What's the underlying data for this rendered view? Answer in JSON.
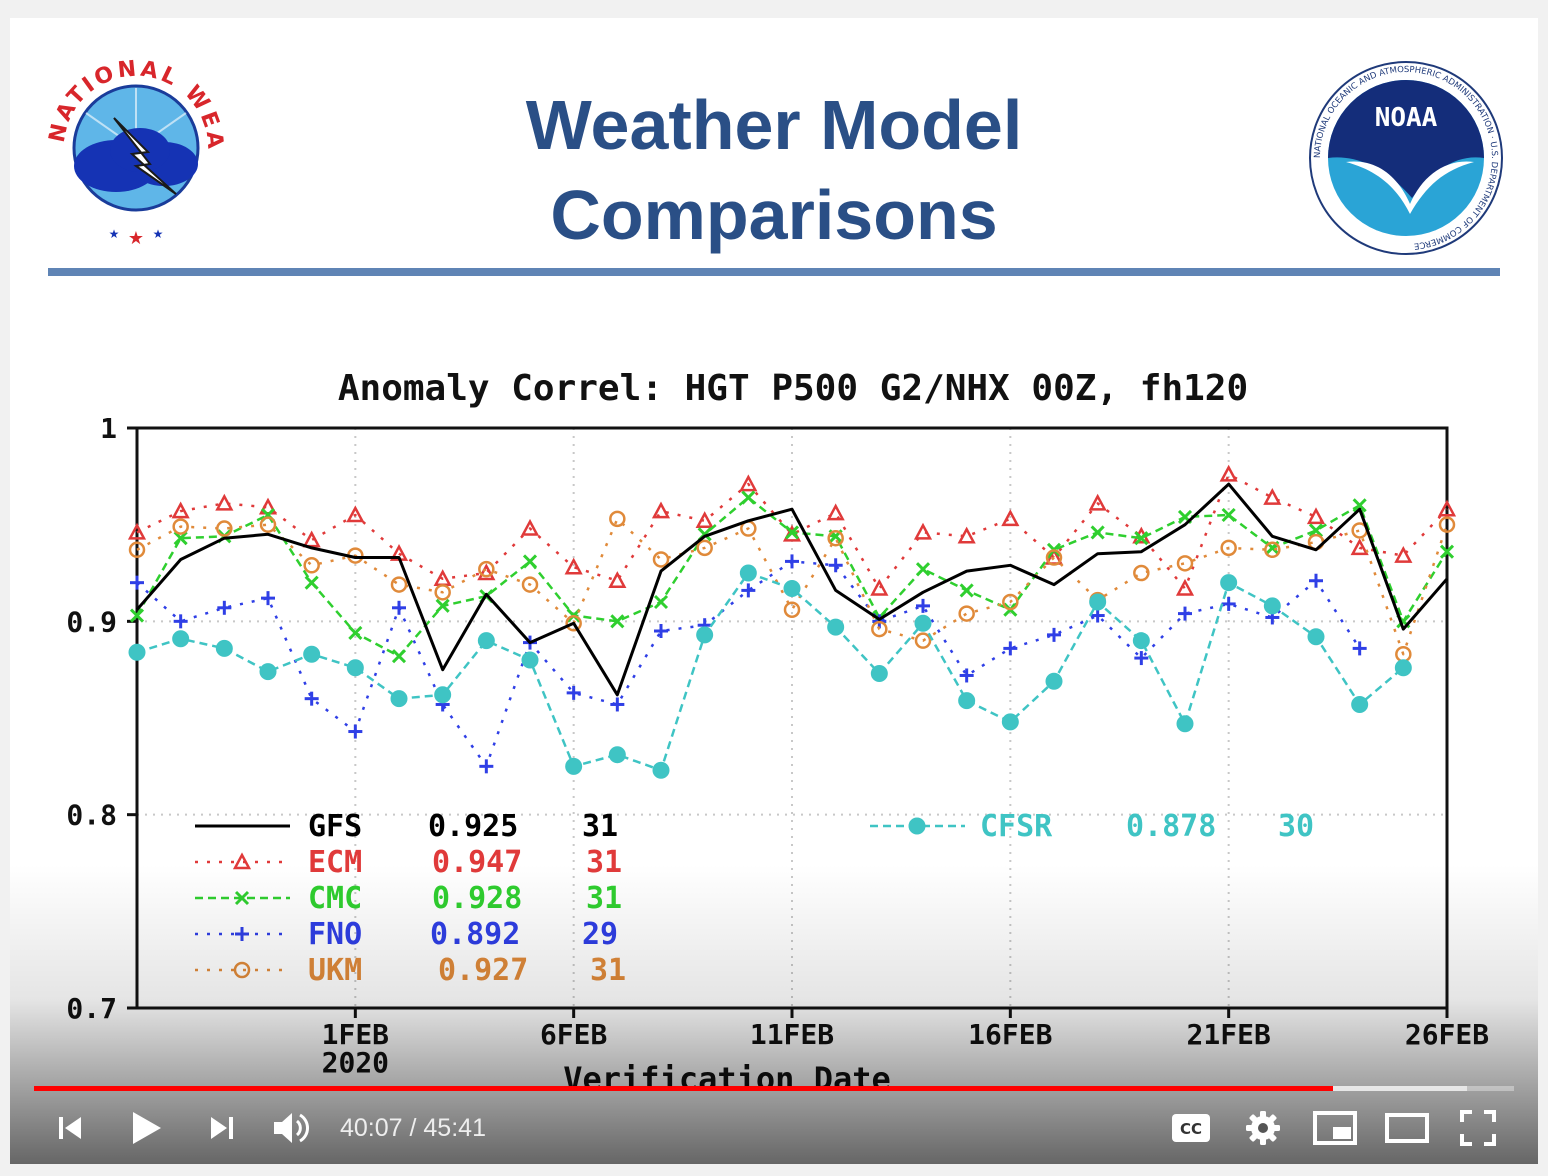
{
  "slide": {
    "title_line1": "Weather Model",
    "title_line2": "Comparisons",
    "logo_left": {
      "ring_text": "NATIONAL WEATHER SERVICE",
      "icon": "nws-logo"
    },
    "logo_right": {
      "center_text": "NOAA",
      "ring_text": "NATIONAL OCEANIC AND ATMOSPHERIC ADMINISTRATION · U.S. DEPARTMENT OF COMMERCE",
      "icon": "noaa-logo"
    }
  },
  "chart_data": {
    "type": "line",
    "title": "Anomaly Correl: HGT P500 G2/NHX 00Z, fh120",
    "xlabel": "Verification Date",
    "ylabel": "",
    "ylim": [
      0.7,
      1.0
    ],
    "yticks": [
      "1",
      "0.9",
      "0.8",
      "0.7"
    ],
    "ytick_values": [
      1.0,
      0.9,
      0.8,
      0.7
    ],
    "x_start": "2020-01-27",
    "x_end": "2020-02-26",
    "xticks": [
      {
        "date": "2020-02-01",
        "label": "1FEB",
        "sublabel": "2020"
      },
      {
        "date": "2020-02-06",
        "label": "6FEB",
        "sublabel": ""
      },
      {
        "date": "2020-02-11",
        "label": "11FEB",
        "sublabel": ""
      },
      {
        "date": "2020-02-16",
        "label": "16FEB",
        "sublabel": ""
      },
      {
        "date": "2020-02-21",
        "label": "21FEB",
        "sublabel": ""
      },
      {
        "date": "2020-02-26",
        "label": "26FEB",
        "sublabel": ""
      }
    ],
    "grid": true,
    "series": [
      {
        "name": "GFS",
        "mean": "0.925",
        "count": "31",
        "color": "#000000",
        "style": "solid",
        "marker": "none",
        "x": [
          "2020-01-27",
          "2020-01-28",
          "2020-01-29",
          "2020-01-30",
          "2020-01-31",
          "2020-02-01",
          "2020-02-02",
          "2020-02-03",
          "2020-02-04",
          "2020-02-05",
          "2020-02-06",
          "2020-02-07",
          "2020-02-08",
          "2020-02-09",
          "2020-02-10",
          "2020-02-11",
          "2020-02-12",
          "2020-02-13",
          "2020-02-14",
          "2020-02-15",
          "2020-02-16",
          "2020-02-17",
          "2020-02-18",
          "2020-02-19",
          "2020-02-20",
          "2020-02-21",
          "2020-02-22",
          "2020-02-23",
          "2020-02-24",
          "2020-02-25",
          "2020-02-26"
        ],
        "y": [
          0.906,
          0.932,
          0.943,
          0.945,
          0.938,
          0.933,
          0.933,
          0.875,
          0.914,
          0.889,
          0.899,
          0.862,
          0.926,
          0.944,
          0.952,
          0.958,
          0.916,
          0.901,
          0.915,
          0.926,
          0.929,
          0.919,
          0.935,
          0.936,
          0.95,
          0.971,
          0.944,
          0.937,
          0.958,
          0.896,
          0.922
        ]
      },
      {
        "name": "ECM",
        "mean": "0.947",
        "count": "31",
        "color": "#e03a3a",
        "style": "dotted",
        "marker": "triangle",
        "x": [
          "2020-01-27",
          "2020-01-28",
          "2020-01-29",
          "2020-01-30",
          "2020-01-31",
          "2020-02-01",
          "2020-02-02",
          "2020-02-03",
          "2020-02-04",
          "2020-02-05",
          "2020-02-06",
          "2020-02-07",
          "2020-02-08",
          "2020-02-09",
          "2020-02-10",
          "2020-02-11",
          "2020-02-12",
          "2020-02-13",
          "2020-02-14",
          "2020-02-15",
          "2020-02-16",
          "2020-02-17",
          "2020-02-18",
          "2020-02-19",
          "2020-02-20",
          "2020-02-21",
          "2020-02-22",
          "2020-02-23",
          "2020-02-24",
          "2020-02-25",
          "2020-02-26"
        ],
        "y": [
          0.946,
          0.957,
          0.961,
          0.959,
          0.942,
          0.955,
          0.935,
          0.922,
          0.925,
          0.948,
          0.928,
          0.921,
          0.957,
          0.952,
          0.971,
          0.945,
          0.956,
          0.917,
          0.946,
          0.944,
          0.953,
          0.933,
          0.961,
          0.944,
          0.917,
          0.976,
          0.964,
          0.954,
          0.938,
          0.934,
          0.958
        ]
      },
      {
        "name": "CMC",
        "mean": "0.928",
        "count": "31",
        "color": "#2fcf2f",
        "style": "dashed",
        "marker": "x",
        "x": [
          "2020-01-27",
          "2020-01-28",
          "2020-01-29",
          "2020-01-30",
          "2020-01-31",
          "2020-02-01",
          "2020-02-02",
          "2020-02-03",
          "2020-02-04",
          "2020-02-05",
          "2020-02-06",
          "2020-02-07",
          "2020-02-08",
          "2020-02-09",
          "2020-02-10",
          "2020-02-11",
          "2020-02-12",
          "2020-02-13",
          "2020-02-14",
          "2020-02-15",
          "2020-02-16",
          "2020-02-17",
          "2020-02-18",
          "2020-02-19",
          "2020-02-20",
          "2020-02-21",
          "2020-02-22",
          "2020-02-23",
          "2020-02-24",
          "2020-02-25",
          "2020-02-26"
        ],
        "y": [
          0.903,
          0.943,
          0.944,
          0.955,
          0.92,
          0.894,
          0.882,
          0.908,
          0.913,
          0.931,
          0.903,
          0.9,
          0.91,
          0.945,
          0.964,
          0.946,
          0.944,
          0.902,
          0.927,
          0.916,
          0.906,
          0.937,
          0.946,
          0.943,
          0.954,
          0.955,
          0.938,
          0.947,
          0.96,
          0.9,
          0.936
        ]
      },
      {
        "name": "FNO",
        "mean": "0.892",
        "count": "29",
        "color": "#2f3fe6",
        "style": "dotted",
        "marker": "plus",
        "x": [
          "2020-01-27",
          "2020-01-28",
          "2020-01-29",
          "2020-01-30",
          "2020-01-31",
          "2020-02-01",
          "2020-02-02",
          "2020-02-03",
          "2020-02-04",
          "2020-02-05",
          "2020-02-06",
          "2020-02-07",
          "2020-02-08",
          "2020-02-09",
          "2020-02-10",
          "2020-02-11",
          "2020-02-12",
          "2020-02-13",
          "2020-02-14",
          "2020-02-15",
          "2020-02-16",
          "2020-02-17",
          "2020-02-18",
          "2020-02-19",
          "2020-02-20",
          "2020-02-21",
          "2020-02-22",
          "2020-02-23",
          "2020-02-24"
        ],
        "y": [
          0.92,
          0.9,
          0.907,
          0.912,
          0.86,
          0.843,
          0.907,
          0.857,
          0.825,
          0.889,
          0.863,
          0.857,
          0.895,
          0.898,
          0.916,
          0.931,
          0.929,
          0.9,
          0.908,
          0.872,
          0.886,
          0.893,
          0.903,
          0.881,
          0.904,
          0.909,
          0.902,
          0.921,
          0.886
        ]
      },
      {
        "name": "UKM",
        "mean": "0.927",
        "count": "31",
        "color": "#e08a3a",
        "style": "dotted",
        "marker": "circle",
        "x": [
          "2020-01-27",
          "2020-01-28",
          "2020-01-29",
          "2020-01-30",
          "2020-01-31",
          "2020-02-01",
          "2020-02-02",
          "2020-02-03",
          "2020-02-04",
          "2020-02-05",
          "2020-02-06",
          "2020-02-07",
          "2020-02-08",
          "2020-02-09",
          "2020-02-10",
          "2020-02-11",
          "2020-02-12",
          "2020-02-13",
          "2020-02-14",
          "2020-02-15",
          "2020-02-16",
          "2020-02-17",
          "2020-02-18",
          "2020-02-19",
          "2020-02-20",
          "2020-02-21",
          "2020-02-22",
          "2020-02-23",
          "2020-02-24",
          "2020-02-25",
          "2020-02-26"
        ],
        "y": [
          0.937,
          0.949,
          0.948,
          0.95,
          0.929,
          0.934,
          0.919,
          0.915,
          0.927,
          0.919,
          0.899,
          0.953,
          0.932,
          0.938,
          0.948,
          0.906,
          0.943,
          0.896,
          0.89,
          0.904,
          0.91,
          0.933,
          0.911,
          0.925,
          0.93,
          0.938,
          0.937,
          0.941,
          0.947,
          0.883,
          0.95
        ]
      },
      {
        "name": "CFSR",
        "mean": "0.878",
        "count": "30",
        "color": "#3fc4c4",
        "style": "dashed",
        "marker": "dot",
        "x": [
          "2020-01-27",
          "2020-01-28",
          "2020-01-29",
          "2020-01-30",
          "2020-01-31",
          "2020-02-01",
          "2020-02-02",
          "2020-02-03",
          "2020-02-04",
          "2020-02-05",
          "2020-02-06",
          "2020-02-07",
          "2020-02-08",
          "2020-02-09",
          "2020-02-10",
          "2020-02-11",
          "2020-02-12",
          "2020-02-13",
          "2020-02-14",
          "2020-02-15",
          "2020-02-16",
          "2020-02-17",
          "2020-02-18",
          "2020-02-19",
          "2020-02-20",
          "2020-02-21",
          "2020-02-22",
          "2020-02-23",
          "2020-02-24",
          "2020-02-25"
        ],
        "y": [
          0.884,
          0.891,
          0.886,
          0.874,
          0.883,
          0.876,
          0.86,
          0.862,
          0.89,
          0.88,
          0.825,
          0.831,
          0.823,
          0.893,
          0.925,
          0.917,
          0.897,
          0.873,
          0.899,
          0.859,
          0.848,
          0.869,
          0.91,
          0.89,
          0.847,
          0.92,
          0.908,
          0.892,
          0.857,
          0.876
        ]
      }
    ]
  },
  "player": {
    "current_time": "40:07",
    "separator": " / ",
    "duration": "45:41",
    "progress_played": 0.878,
    "progress_buffered": 0.968,
    "controls": [
      {
        "id": "prev",
        "icon": "skip-previous-icon"
      },
      {
        "id": "play",
        "icon": "play-icon"
      },
      {
        "id": "next",
        "icon": "skip-next-icon"
      },
      {
        "id": "volume",
        "icon": "volume-icon"
      },
      {
        "id": "cc",
        "icon": "captions-icon",
        "label": "CC"
      },
      {
        "id": "settings",
        "icon": "gear-icon"
      },
      {
        "id": "miniplayer",
        "icon": "miniplayer-icon"
      },
      {
        "id": "theater",
        "icon": "theater-mode-icon"
      },
      {
        "id": "fullscreen",
        "icon": "fullscreen-icon"
      }
    ],
    "accent_color": "#ff0000"
  }
}
